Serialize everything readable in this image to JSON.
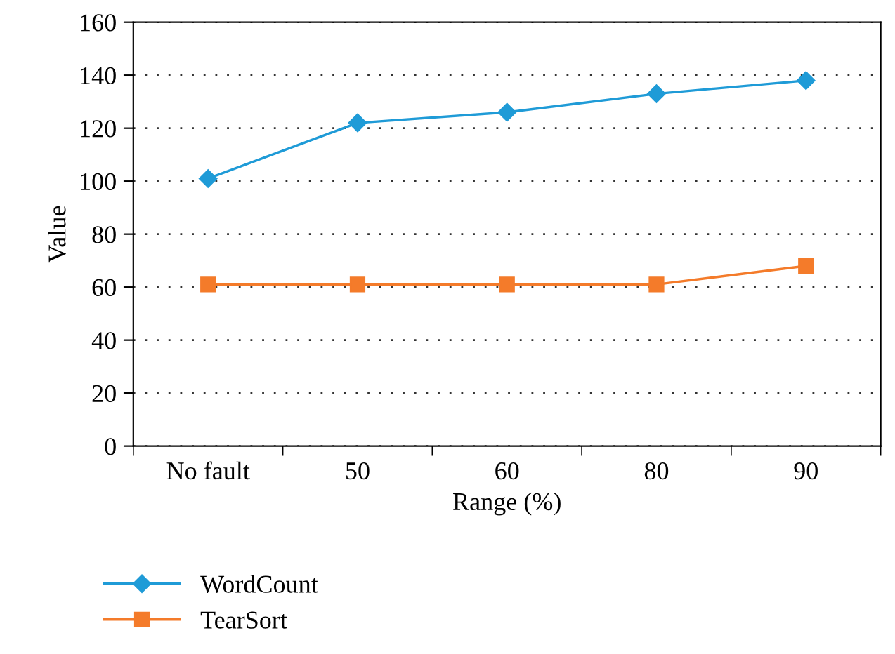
{
  "chart_data": {
    "type": "line",
    "xlabel": "Range (%)",
    "ylabel": "Value",
    "categories": [
      "No fault",
      "50",
      "60",
      "80",
      "90"
    ],
    "series": [
      {
        "name": "WordCount",
        "color": "#1f9bd7",
        "marker": "diamond",
        "values": [
          101,
          122,
          126,
          133,
          138
        ]
      },
      {
        "name": "TearSort",
        "color": "#f47b2a",
        "marker": "square",
        "values": [
          61,
          61,
          61,
          61,
          68
        ]
      }
    ],
    "ylim": [
      0,
      160
    ],
    "yticks": [
      0,
      20,
      40,
      60,
      80,
      100,
      120,
      140,
      160
    ],
    "grid": "y",
    "legend": "bottom",
    "line_style": "solid"
  }
}
